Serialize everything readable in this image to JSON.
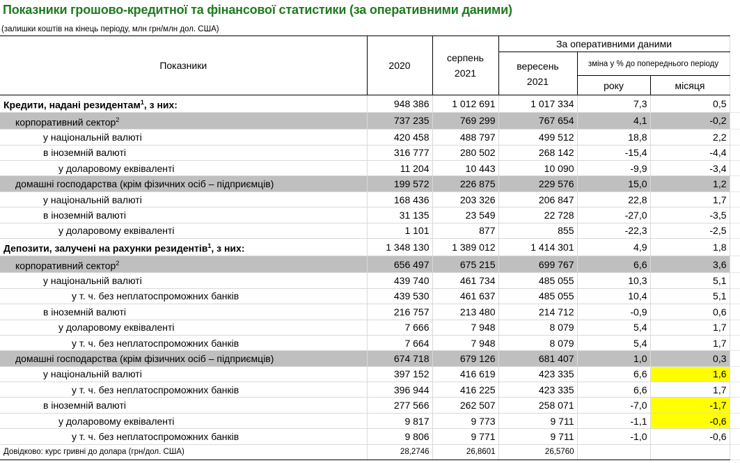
{
  "title": "Показники грошово-кредитної та фінансової статистики (за оперативними даними)",
  "subtitle": "(залишки коштів на кінець періоду, млн грн/млн дол. США)",
  "header": {
    "indicators": "Показники",
    "col_2020": "2020",
    "col_aug_1": "серпень",
    "col_aug_2": "2021",
    "operative": "За оперативними даними",
    "col_sep_1": "вересень",
    "col_sep_2": "2021",
    "change": "зміна у % до попереднього періоду",
    "year": "року",
    "month": "місяця"
  },
  "colors": {
    "title": "#1e7a1e",
    "shade": "#bfbfbf",
    "highlight": "#ffff00"
  },
  "rows": [
    {
      "label": "Кредити, надані резидентам",
      "sup": "1",
      "suffix": ", з них:",
      "level": 0,
      "bold": true,
      "values": [
        "948 386",
        "1 012 691",
        "1 017 334",
        "7,3",
        "0,5"
      ]
    },
    {
      "label": "корпоративний сектор",
      "sup": "2",
      "suffix": "",
      "level": 1,
      "shaded": true,
      "values": [
        "737 235",
        "769 299",
        "767 654",
        "4,1",
        "-0,2"
      ]
    },
    {
      "label": "у національній валюті",
      "level": 2,
      "values": [
        "420 458",
        "488 797",
        "499 512",
        "18,8",
        "2,2"
      ]
    },
    {
      "label": "в іноземній валюті",
      "level": 2,
      "values": [
        "316 777",
        "280 502",
        "268 142",
        "-15,4",
        "-4,4"
      ]
    },
    {
      "label": "у доларовому еквіваленті",
      "level": 3,
      "values": [
        "11 204",
        "10 443",
        "10 090",
        "-9,9",
        "-3,4"
      ]
    },
    {
      "label": "домашні господарства (крім фізичних осіб – підприємців)",
      "level": 1,
      "shaded": true,
      "values": [
        "199 572",
        "226 875",
        "229 576",
        "15,0",
        "1,2"
      ]
    },
    {
      "label": "у національній валюті",
      "level": 2,
      "values": [
        "168 436",
        "203 326",
        "206 847",
        "22,8",
        "1,7"
      ]
    },
    {
      "label": "в іноземній валюті",
      "level": 2,
      "values": [
        "31 135",
        "23 549",
        "22 728",
        "-27,0",
        "-3,5"
      ]
    },
    {
      "label": "у доларовому еквіваленті",
      "level": 3,
      "values": [
        "1 101",
        "877",
        "855",
        "-22,3",
        "-2,5"
      ]
    },
    {
      "label": "Депозити, залучені на рахунки резидентів",
      "sup": "1",
      "suffix": ", з них:",
      "level": 0,
      "bold": true,
      "topline": true,
      "values": [
        "1 348 130",
        "1 389 012",
        "1 414 301",
        "4,9",
        "1,8"
      ]
    },
    {
      "label": "корпоративний сектор",
      "sup": "2",
      "suffix": "",
      "level": 1,
      "shaded": true,
      "values": [
        "656 497",
        "675 215",
        "699 767",
        "6,6",
        "3,6"
      ]
    },
    {
      "label": "у національній валюті",
      "level": 2,
      "values": [
        "439 740",
        "461 734",
        "485 055",
        "10,3",
        "5,1"
      ]
    },
    {
      "label": "у т. ч. без неплатоспроможних банків",
      "level": 4,
      "values": [
        "439 530",
        "461 637",
        "485 055",
        "10,4",
        "5,1"
      ]
    },
    {
      "label": "в іноземній валюті",
      "level": 2,
      "values": [
        "216 757",
        "213 480",
        "214 712",
        "-0,9",
        "0,6"
      ]
    },
    {
      "label": "у доларовому еквіваленті",
      "level": 3,
      "values": [
        "7 666",
        "7 948",
        "8 079",
        "5,4",
        "1,7"
      ]
    },
    {
      "label": "у т. ч. без неплатоспроможних банків",
      "level": 4,
      "values": [
        "7 664",
        "7 948",
        "8 079",
        "5,4",
        "1,7"
      ]
    },
    {
      "label": "домашні господарства (крім фізичних осіб – підприємців)",
      "level": 1,
      "shaded": true,
      "values": [
        "674 718",
        "679 126",
        "681 407",
        "1,0",
        "0,3"
      ]
    },
    {
      "label": "у національній валюті",
      "level": 2,
      "highlight_month": true,
      "values": [
        "397 152",
        "416 619",
        "423 335",
        "6,6",
        "1,6"
      ]
    },
    {
      "label": "у т. ч. без неплатоспроможних банків",
      "level": 4,
      "values": [
        "396 944",
        "416 225",
        "423 335",
        "6,6",
        "1,7"
      ]
    },
    {
      "label": "в іноземній валюті",
      "level": 2,
      "highlight_month": true,
      "values": [
        "277 566",
        "262 507",
        "258 071",
        "-7,0",
        "-1,7"
      ]
    },
    {
      "label": "у доларовому еквіваленті",
      "level": 3,
      "highlight_month": true,
      "values": [
        "9 817",
        "9 773",
        "9 711",
        "-1,1",
        "-0,6"
      ]
    },
    {
      "label": "у т. ч. без неплатоспроможних банків",
      "level": 4,
      "values": [
        "9 806",
        "9 771",
        "9 711",
        "-1,0",
        "-0,6"
      ]
    },
    {
      "label": "Довідково: курс гривні до долара (грн/дол. США)",
      "level": 0,
      "topline": true,
      "bottomline": true,
      "small": true,
      "values": [
        "28,2746",
        "26,8601",
        "26,5760",
        "",
        ""
      ]
    }
  ]
}
